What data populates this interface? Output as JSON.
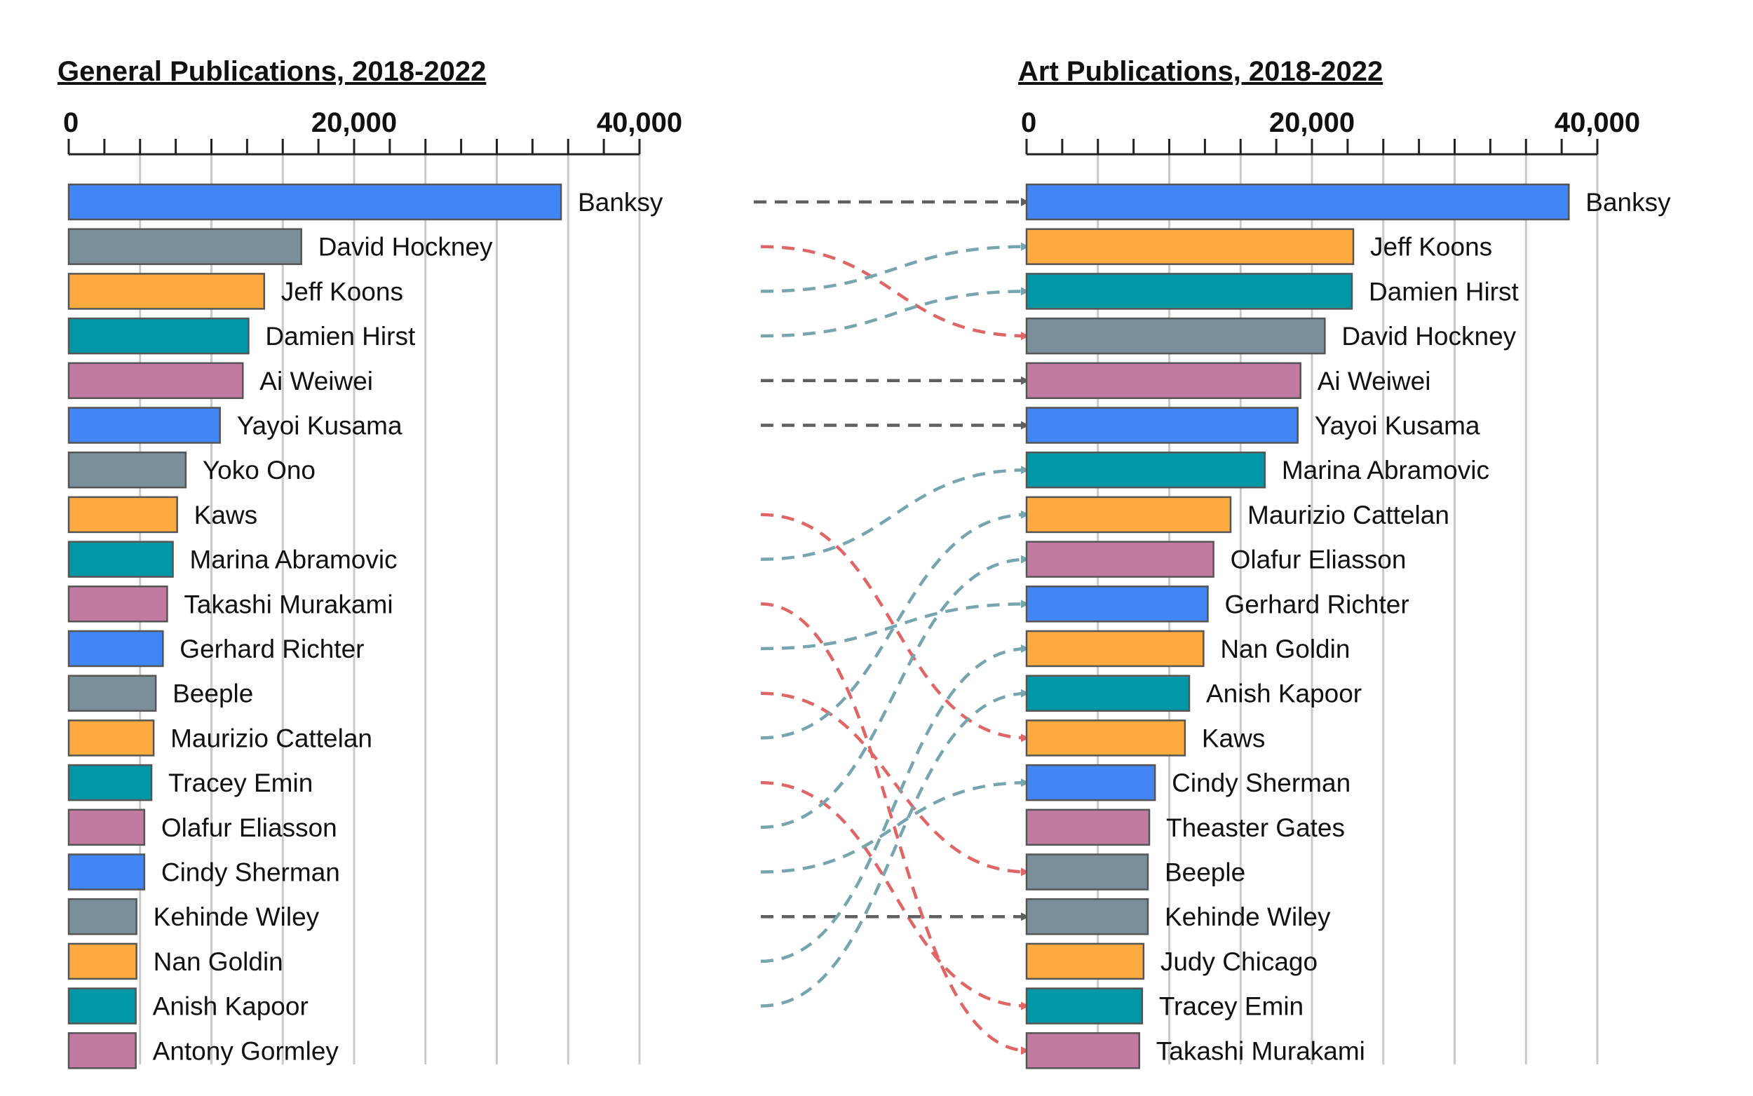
{
  "chart_data": [
    {
      "type": "bar",
      "orientation": "horizontal",
      "title": "General Publications, 2018-2022",
      "xlim": [
        0,
        40000
      ],
      "tick_values": [
        0,
        20000,
        40000
      ],
      "tick_labels": [
        "0",
        "20,000",
        "40,000"
      ],
      "minor_tick_step": 2500,
      "grid_step": 5000,
      "categories": [
        "Banksy",
        "David Hockney",
        "Jeff Koons",
        "Damien Hirst",
        "Ai Weiwei",
        "Yayoi Kusama",
        "Yoko Ono",
        "Kaws",
        "Marina Abramovic",
        "Takashi Murakami",
        "Gerhard Richter",
        "Beeple",
        "Maurizio Cattelan",
        "Tracey Emin",
        "Olafur Eliasson",
        "Cindy Sherman",
        "Kehinde Wiley",
        "Nan Goldin",
        "Anish Kapoor",
        "Antony Gormley"
      ],
      "values": [
        34500,
        16300,
        13700,
        12600,
        12200,
        10600,
        8200,
        7600,
        7300,
        6900,
        6600,
        6100,
        5950,
        5800,
        5300,
        5300,
        4750,
        4750,
        4700,
        4700
      ],
      "colors": [
        "#4285f4",
        "#7b8f9b",
        "#ffab40",
        "#0097a7",
        "#c27ba0",
        "#4285f4",
        "#7b8f9b",
        "#ffab40",
        "#0097a7",
        "#c27ba0",
        "#4285f4",
        "#7b8f9b",
        "#ffab40",
        "#0097a7",
        "#c27ba0",
        "#4285f4",
        "#7b8f9b",
        "#ffab40",
        "#0097a7",
        "#c27ba0"
      ]
    },
    {
      "type": "bar",
      "orientation": "horizontal",
      "title": "Art Publications, 2018-2022",
      "xlim": [
        0,
        40000
      ],
      "tick_values": [
        0,
        20000,
        40000
      ],
      "tick_labels": [
        "0",
        "20,000",
        "40,000"
      ],
      "minor_tick_step": 2500,
      "grid_step": 5000,
      "categories": [
        "Banksy",
        "Jeff Koons",
        "Damien Hirst",
        "David Hockney",
        "Ai Weiwei",
        "Yayoi Kusama",
        "Marina Abramovic",
        "Maurizio Cattelan",
        "Olafur Eliasson",
        "Gerhard Richter",
        "Nan Goldin",
        "Anish Kapoor",
        "Kaws",
        "Cindy Sherman",
        "Theaster Gates",
        "Beeple",
        "Kehinde Wiley",
        "Judy Chicago",
        "Tracey Emin",
        "Takashi Murakami"
      ],
      "values": [
        38000,
        22900,
        22800,
        20900,
        19200,
        19000,
        16700,
        14300,
        13100,
        12700,
        12400,
        11400,
        11100,
        9000,
        8600,
        8500,
        8500,
        8200,
        8100,
        7900
      ],
      "colors": [
        "#4285f4",
        "#ffab40",
        "#0097a7",
        "#7b8f9b",
        "#c27ba0",
        "#4285f4",
        "#0097a7",
        "#ffab40",
        "#c27ba0",
        "#4285f4",
        "#ffab40",
        "#0097a7",
        "#ffab40",
        "#4285f4",
        "#c27ba0",
        "#7b8f9b",
        "#7b8f9b",
        "#ffab40",
        "#0097a7",
        "#c27ba0"
      ]
    }
  ],
  "connectors": [
    {
      "from": "Banksy",
      "to": "Banksy",
      "change": "same"
    },
    {
      "from": "David Hockney",
      "to": "David Hockney",
      "change": "down"
    },
    {
      "from": "Jeff Koons",
      "to": "Jeff Koons",
      "change": "up"
    },
    {
      "from": "Damien Hirst",
      "to": "Damien Hirst",
      "change": "up"
    },
    {
      "from": "Ai Weiwei",
      "to": "Ai Weiwei",
      "change": "same"
    },
    {
      "from": "Yayoi Kusama",
      "to": "Yayoi Kusama",
      "change": "same"
    },
    {
      "from": "Kaws",
      "to": "Kaws",
      "change": "down"
    },
    {
      "from": "Marina Abramovic",
      "to": "Marina Abramovic",
      "change": "up"
    },
    {
      "from": "Takashi Murakami",
      "to": "Takashi Murakami",
      "change": "down"
    },
    {
      "from": "Gerhard Richter",
      "to": "Gerhard Richter",
      "change": "up"
    },
    {
      "from": "Beeple",
      "to": "Beeple",
      "change": "down"
    },
    {
      "from": "Maurizio Cattelan",
      "to": "Maurizio Cattelan",
      "change": "up"
    },
    {
      "from": "Tracey Emin",
      "to": "Tracey Emin",
      "change": "down"
    },
    {
      "from": "Olafur Eliasson",
      "to": "Olafur Eliasson",
      "change": "up"
    },
    {
      "from": "Cindy Sherman",
      "to": "Cindy Sherman",
      "change": "up"
    },
    {
      "from": "Kehinde Wiley",
      "to": "Kehinde Wiley",
      "change": "same"
    },
    {
      "from": "Nan Goldin",
      "to": "Nan Goldin",
      "change": "up"
    },
    {
      "from": "Anish Kapoor",
      "to": "Anish Kapoor",
      "change": "up"
    }
  ],
  "connector_colors": {
    "same": "#5f5f5f",
    "up": "#76a5af",
    "down": "#e06666"
  }
}
